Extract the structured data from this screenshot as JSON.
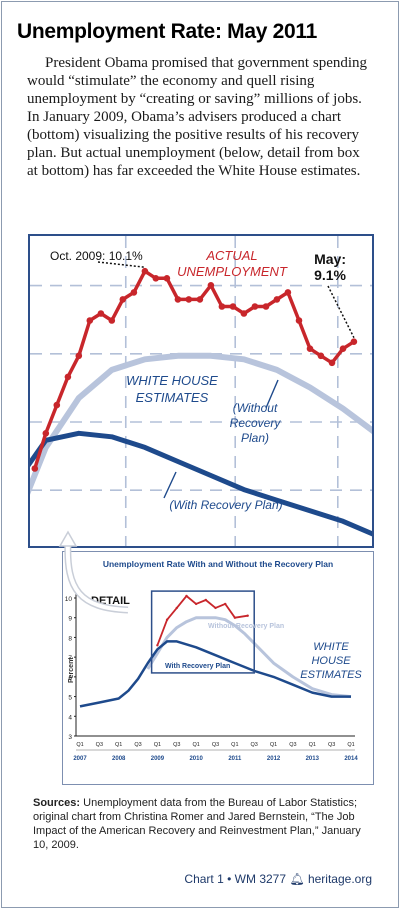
{
  "title": "Unemployment Rate: May 2011",
  "intro": "President Obama promised that government spending would “stimulate” the economy and quell rising unemployment by “creating or saving” millions of jobs. In January 2009, Obama’s advisers produced a chart (bottom) visualizing the positive results of his recovery plan. But actual unemployment (below, detail from box at bottom) has far exceeded the White House estimates.",
  "colors": {
    "actual": "#c8262b",
    "without": "#b8c4dc",
    "with": "#1e4a8c",
    "grid": "#b3c0d8",
    "frame": "#2d4f8a"
  },
  "chart_data": [
    {
      "type": "line",
      "annotations": {
        "oct": "Oct. 2009: 10.1%",
        "actual_1": "ACTUAL",
        "actual_2": "UNEMPLOYMENT",
        "may_1": "May:",
        "may_2": "9.1%",
        "wh_1": "WHITE HOUSE",
        "wh_2": "ESTIMATES",
        "without_1": "(Without",
        "without_2": "Recovery",
        "without_3": "Plan)",
        "with": "(With Recovery Plan)"
      },
      "xlim": [
        2008.85,
        2011.5
      ],
      "ylim": [
        6.2,
        10.6
      ],
      "series": [
        {
          "key": "actual",
          "x": [
            2008.917,
            2009.0,
            2009.083,
            2009.167,
            2009.25,
            2009.333,
            2009.417,
            2009.5,
            2009.583,
            2009.667,
            2009.75,
            2009.833,
            2009.917,
            2010.0,
            2010.083,
            2010.167,
            2010.25,
            2010.333,
            2010.417,
            2010.5,
            2010.583,
            2010.667,
            2010.75,
            2010.833,
            2010.917,
            2011.0,
            2011.083,
            2011.167,
            2011.25,
            2011.333
          ],
          "values": [
            7.3,
            7.8,
            8.2,
            8.6,
            8.9,
            9.4,
            9.5,
            9.4,
            9.7,
            9.8,
            10.1,
            10.0,
            10.0,
            9.7,
            9.7,
            9.7,
            9.9,
            9.6,
            9.6,
            9.5,
            9.6,
            9.6,
            9.7,
            9.8,
            9.4,
            9.0,
            8.9,
            8.8,
            9.0,
            9.1
          ]
        },
        {
          "key": "without",
          "x": [
            2008.85,
            2009.0,
            2009.25,
            2009.5,
            2009.75,
            2010.0,
            2010.25,
            2010.5,
            2010.75,
            2011.0,
            2011.25,
            2011.5
          ],
          "values": [
            6.9,
            7.6,
            8.3,
            8.7,
            8.85,
            8.9,
            8.9,
            8.85,
            8.7,
            8.45,
            8.15,
            7.8
          ]
        },
        {
          "key": "with",
          "x": [
            2008.85,
            2009.0,
            2009.25,
            2009.5,
            2009.75,
            2010.0,
            2010.25,
            2010.5,
            2010.75,
            2011.0,
            2011.25,
            2011.5
          ],
          "values": [
            7.3,
            7.7,
            7.8,
            7.75,
            7.6,
            7.4,
            7.2,
            7.0,
            6.85,
            6.7,
            6.55,
            6.35
          ]
        }
      ]
    },
    {
      "type": "line",
      "title": "Unemployment Rate With and Without the Recovery Plan",
      "detail_label": "DETAIL",
      "ylabel": "Percent",
      "ylim": [
        3,
        10
      ],
      "xlim": [
        2007.0,
        2014.0
      ],
      "yticks": [
        "3",
        "4",
        "5",
        "6",
        "7",
        "8",
        "9",
        "10"
      ],
      "xticks": [
        "Q1",
        "Q3",
        "Q1",
        "Q3",
        "Q1",
        "Q3",
        "Q1",
        "Q3",
        "Q1",
        "Q3",
        "Q1",
        "Q3",
        "Q1",
        "Q3",
        "Q1"
      ],
      "years": [
        "2007",
        "2008",
        "2009",
        "2010",
        "2011",
        "2012",
        "2013",
        "2014"
      ],
      "labels": {
        "without": "Without Recovery Plan",
        "with": "With Recovery Plan",
        "wh_1": "WHITE",
        "wh_2": "HOUSE",
        "wh_3": "ESTIMATES"
      },
      "series": [
        {
          "key": "without",
          "x": [
            2008.75,
            2009.0,
            2009.25,
            2009.5,
            2009.75,
            2010.0,
            2010.25,
            2010.5,
            2010.75,
            2011.0,
            2011.25,
            2011.5,
            2011.75,
            2012.0,
            2012.5,
            2013.0,
            2013.5,
            2014.0
          ],
          "values": [
            6.4,
            7.2,
            8.0,
            8.5,
            8.8,
            9.0,
            9.0,
            9.0,
            8.9,
            8.6,
            8.2,
            7.7,
            7.2,
            6.7,
            6.0,
            5.4,
            5.1,
            5.0
          ]
        },
        {
          "key": "with",
          "x": [
            2007.0,
            2007.5,
            2008.0,
            2008.25,
            2008.5,
            2008.75,
            2009.0,
            2009.25,
            2009.5,
            2010.0,
            2010.5,
            2011.0,
            2011.5,
            2012.0,
            2012.5,
            2013.0,
            2013.5,
            2014.0
          ],
          "values": [
            4.5,
            4.7,
            4.9,
            5.3,
            5.9,
            6.7,
            7.4,
            7.8,
            7.8,
            7.5,
            7.1,
            6.7,
            6.3,
            6.0,
            5.6,
            5.2,
            5.0,
            5.0
          ]
        },
        {
          "key": "actual",
          "x": [
            2009.0,
            2009.25,
            2009.5,
            2009.75,
            2010.0,
            2010.25,
            2010.5,
            2010.75,
            2011.0,
            2011.333
          ],
          "values": [
            7.6,
            8.9,
            9.5,
            10.1,
            9.7,
            9.9,
            9.5,
            9.7,
            9.0,
            9.1
          ]
        }
      ]
    }
  ],
  "sources": {
    "label": "Sources:",
    "text": " Unemployment data from the Bureau of Labor Statistics; original chart from Christina Romer and Jared Bernstein, “The Job Impact of the American Recovery and Reinvestment Plan,” January 10, 2009."
  },
  "footer": {
    "chart": "Chart 1",
    "sep": "•",
    "wm": "WM 3277",
    "site": "heritage.org"
  }
}
